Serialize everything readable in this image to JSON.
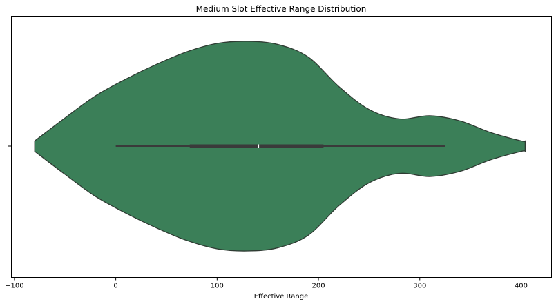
{
  "chart_data": {
    "type": "violin",
    "title": "Medium Slot Effective Range Distribution",
    "xlabel": "Effective Range",
    "ylabel": "",
    "xlim": [
      -103,
      430
    ],
    "xticks": [
      -100,
      0,
      100,
      200,
      300,
      400
    ],
    "xtick_labels": [
      "−100",
      "0",
      "100",
      "200",
      "300",
      "400"
    ],
    "grid": false,
    "colors": {
      "violin_fill": "#3b7f58",
      "violin_edge": "#2f3b33",
      "box": "#3a3a3a",
      "median": "#ffffff"
    },
    "series": [
      {
        "density_x": [
          -80,
          -50,
          -20,
          10,
          40,
          70,
          100,
          130,
          160,
          190,
          220,
          250,
          280,
          310,
          340,
          370,
          400,
          404
        ],
        "density_half_width": [
          0.05,
          0.27,
          0.48,
          0.64,
          0.78,
          0.9,
          0.98,
          1.0,
          0.97,
          0.85,
          0.57,
          0.35,
          0.26,
          0.29,
          0.24,
          0.13,
          0.05,
          0.05
        ],
        "whisker_low": 0,
        "q1": 73,
        "median": 141,
        "q3": 205,
        "whisker_high": 325
      }
    ]
  }
}
